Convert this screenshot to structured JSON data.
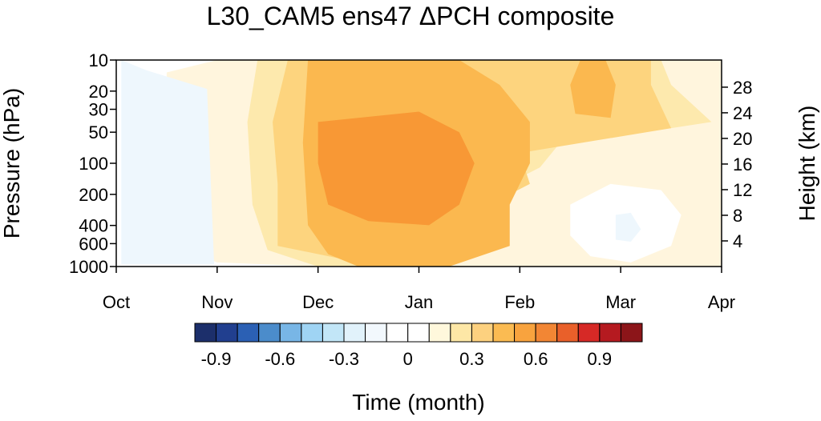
{
  "chart_data": {
    "type": "heatmap",
    "title": "L30_CAM5 ens47 ΔPCH composite",
    "xlabel": "Time (month)",
    "ylabel": "Pressure (hPa)",
    "y2label": "Height (km)",
    "x_categories": [
      "Oct",
      "Nov",
      "Dec",
      "Jan",
      "Feb",
      "Mar",
      "Apr"
    ],
    "y_ticks_pressure": [
      10,
      20,
      30,
      50,
      100,
      200,
      400,
      600,
      1000
    ],
    "y_scale": "log",
    "y_range_hpa": [
      1000,
      10
    ],
    "y2_ticks_height": [
      4,
      8,
      12,
      16,
      20,
      24,
      28
    ],
    "colorbar": {
      "levels": [
        -1.0,
        -0.9,
        -0.8,
        -0.7,
        -0.6,
        -0.5,
        -0.4,
        -0.3,
        -0.2,
        -0.1,
        0,
        0.1,
        0.2,
        0.3,
        0.4,
        0.5,
        0.6,
        0.7,
        0.8,
        0.9,
        1.0
      ],
      "labels": [
        "-0.9",
        "-0.6",
        "-0.3",
        "0",
        "0.3",
        "0.6",
        "0.9"
      ],
      "colors": [
        "#1c2f6b",
        "#213f8f",
        "#2b60b4",
        "#4b8ccb",
        "#78b6e6",
        "#9fd4f4",
        "#c2e6f7",
        "#e1f2fb",
        "#f2f8fd",
        "#ffffff",
        "#ffffff",
        "#fff8dc",
        "#fde7a6",
        "#fdd17f",
        "#fbbb52",
        "#f8a33e",
        "#f28634",
        "#e9602a",
        "#d62926",
        "#b51a20",
        "#8c1519"
      ]
    },
    "contours": [
      {
        "level": 0.05,
        "color": "#fff5dd",
        "points": [
          [
            0.5,
            0.06
          ],
          [
            1.0,
            0.0
          ],
          [
            2.0,
            0.0
          ],
          [
            2.6,
            0.2
          ],
          [
            3.0,
            0.16
          ],
          [
            4.0,
            0.12
          ],
          [
            4.6,
            0.06
          ],
          [
            5.0,
            0.0
          ],
          [
            6.0,
            0.0
          ],
          [
            6.0,
            1.0
          ],
          [
            5.8,
            1.0
          ],
          [
            4.2,
            1.0
          ],
          [
            2.0,
            1.0
          ],
          [
            1.0,
            0.98
          ],
          [
            0.6,
            0.9
          ],
          [
            0.5,
            0.5
          ]
        ]
      },
      {
        "level": 0.2,
        "color": "#fde9ad",
        "points": [
          [
            1.4,
            0.0
          ],
          [
            2.2,
            0.0
          ],
          [
            2.6,
            0.02
          ],
          [
            3.4,
            0.0
          ],
          [
            5.4,
            0.0
          ],
          [
            5.5,
            0.12
          ],
          [
            5.9,
            0.3
          ],
          [
            5.1,
            0.36
          ],
          [
            4.4,
            0.4
          ],
          [
            4.2,
            0.52
          ],
          [
            3.8,
            0.62
          ],
          [
            3.7,
            0.9
          ],
          [
            3.0,
            1.0
          ],
          [
            2.0,
            1.0
          ],
          [
            1.5,
            0.92
          ],
          [
            1.35,
            0.7
          ],
          [
            1.3,
            0.3
          ]
        ]
      },
      {
        "level": 0.3,
        "color": "#fdd47e",
        "points": [
          [
            1.7,
            0.0
          ],
          [
            4.6,
            0.0
          ],
          [
            5.3,
            0.0
          ],
          [
            5.3,
            0.12
          ],
          [
            5.5,
            0.33
          ],
          [
            4.0,
            0.45
          ],
          [
            4.1,
            0.6
          ],
          [
            3.9,
            0.65
          ],
          [
            3.8,
            0.85
          ],
          [
            3.2,
            0.94
          ],
          [
            2.2,
            0.96
          ],
          [
            1.6,
            0.9
          ],
          [
            1.6,
            0.6
          ],
          [
            1.55,
            0.3
          ]
        ]
      },
      {
        "level": 0.45,
        "color": "#fbb84f",
        "points": [
          [
            1.9,
            0.0
          ],
          [
            3.4,
            0.0
          ],
          [
            3.8,
            0.12
          ],
          [
            4.1,
            0.3
          ],
          [
            4.1,
            0.5
          ],
          [
            3.9,
            0.7
          ],
          [
            3.9,
            0.9
          ],
          [
            3.3,
            1.0
          ],
          [
            2.4,
            1.0
          ],
          [
            2.1,
            0.94
          ],
          [
            1.9,
            0.8
          ],
          [
            1.85,
            0.4
          ]
        ]
      },
      {
        "level": 0.45,
        "color": "#fbb84f",
        "points": [
          [
            4.6,
            0.0
          ],
          [
            4.85,
            0.0
          ],
          [
            4.95,
            0.12
          ],
          [
            4.9,
            0.28
          ],
          [
            4.55,
            0.26
          ],
          [
            4.5,
            0.12
          ]
        ]
      },
      {
        "level": 0.6,
        "color": "#f89835",
        "points": [
          [
            2.0,
            0.3
          ],
          [
            3.0,
            0.25
          ],
          [
            3.4,
            0.35
          ],
          [
            3.55,
            0.5
          ],
          [
            3.4,
            0.7
          ],
          [
            3.1,
            0.8
          ],
          [
            2.5,
            0.78
          ],
          [
            2.1,
            0.7
          ],
          [
            2.0,
            0.5
          ]
        ]
      },
      {
        "level": -0.05,
        "color": "#ffffff",
        "points": [
          [
            4.5,
            0.7
          ],
          [
            4.9,
            0.6
          ],
          [
            5.4,
            0.63
          ],
          [
            5.6,
            0.75
          ],
          [
            5.5,
            0.9
          ],
          [
            5.1,
            0.98
          ],
          [
            4.7,
            0.95
          ],
          [
            4.5,
            0.85
          ]
        ]
      },
      {
        "level": -0.1,
        "color": "#eef7fd",
        "points": [
          [
            4.95,
            0.75
          ],
          [
            5.1,
            0.74
          ],
          [
            5.2,
            0.82
          ],
          [
            5.1,
            0.88
          ],
          [
            4.95,
            0.87
          ]
        ]
      },
      {
        "level": -0.1,
        "color": "#eef7fd",
        "points": [
          [
            0.05,
            0.0
          ],
          [
            0.3,
            0.05
          ],
          [
            0.9,
            0.14
          ],
          [
            0.97,
            0.99
          ],
          [
            0.05,
            0.99
          ]
        ]
      }
    ]
  }
}
